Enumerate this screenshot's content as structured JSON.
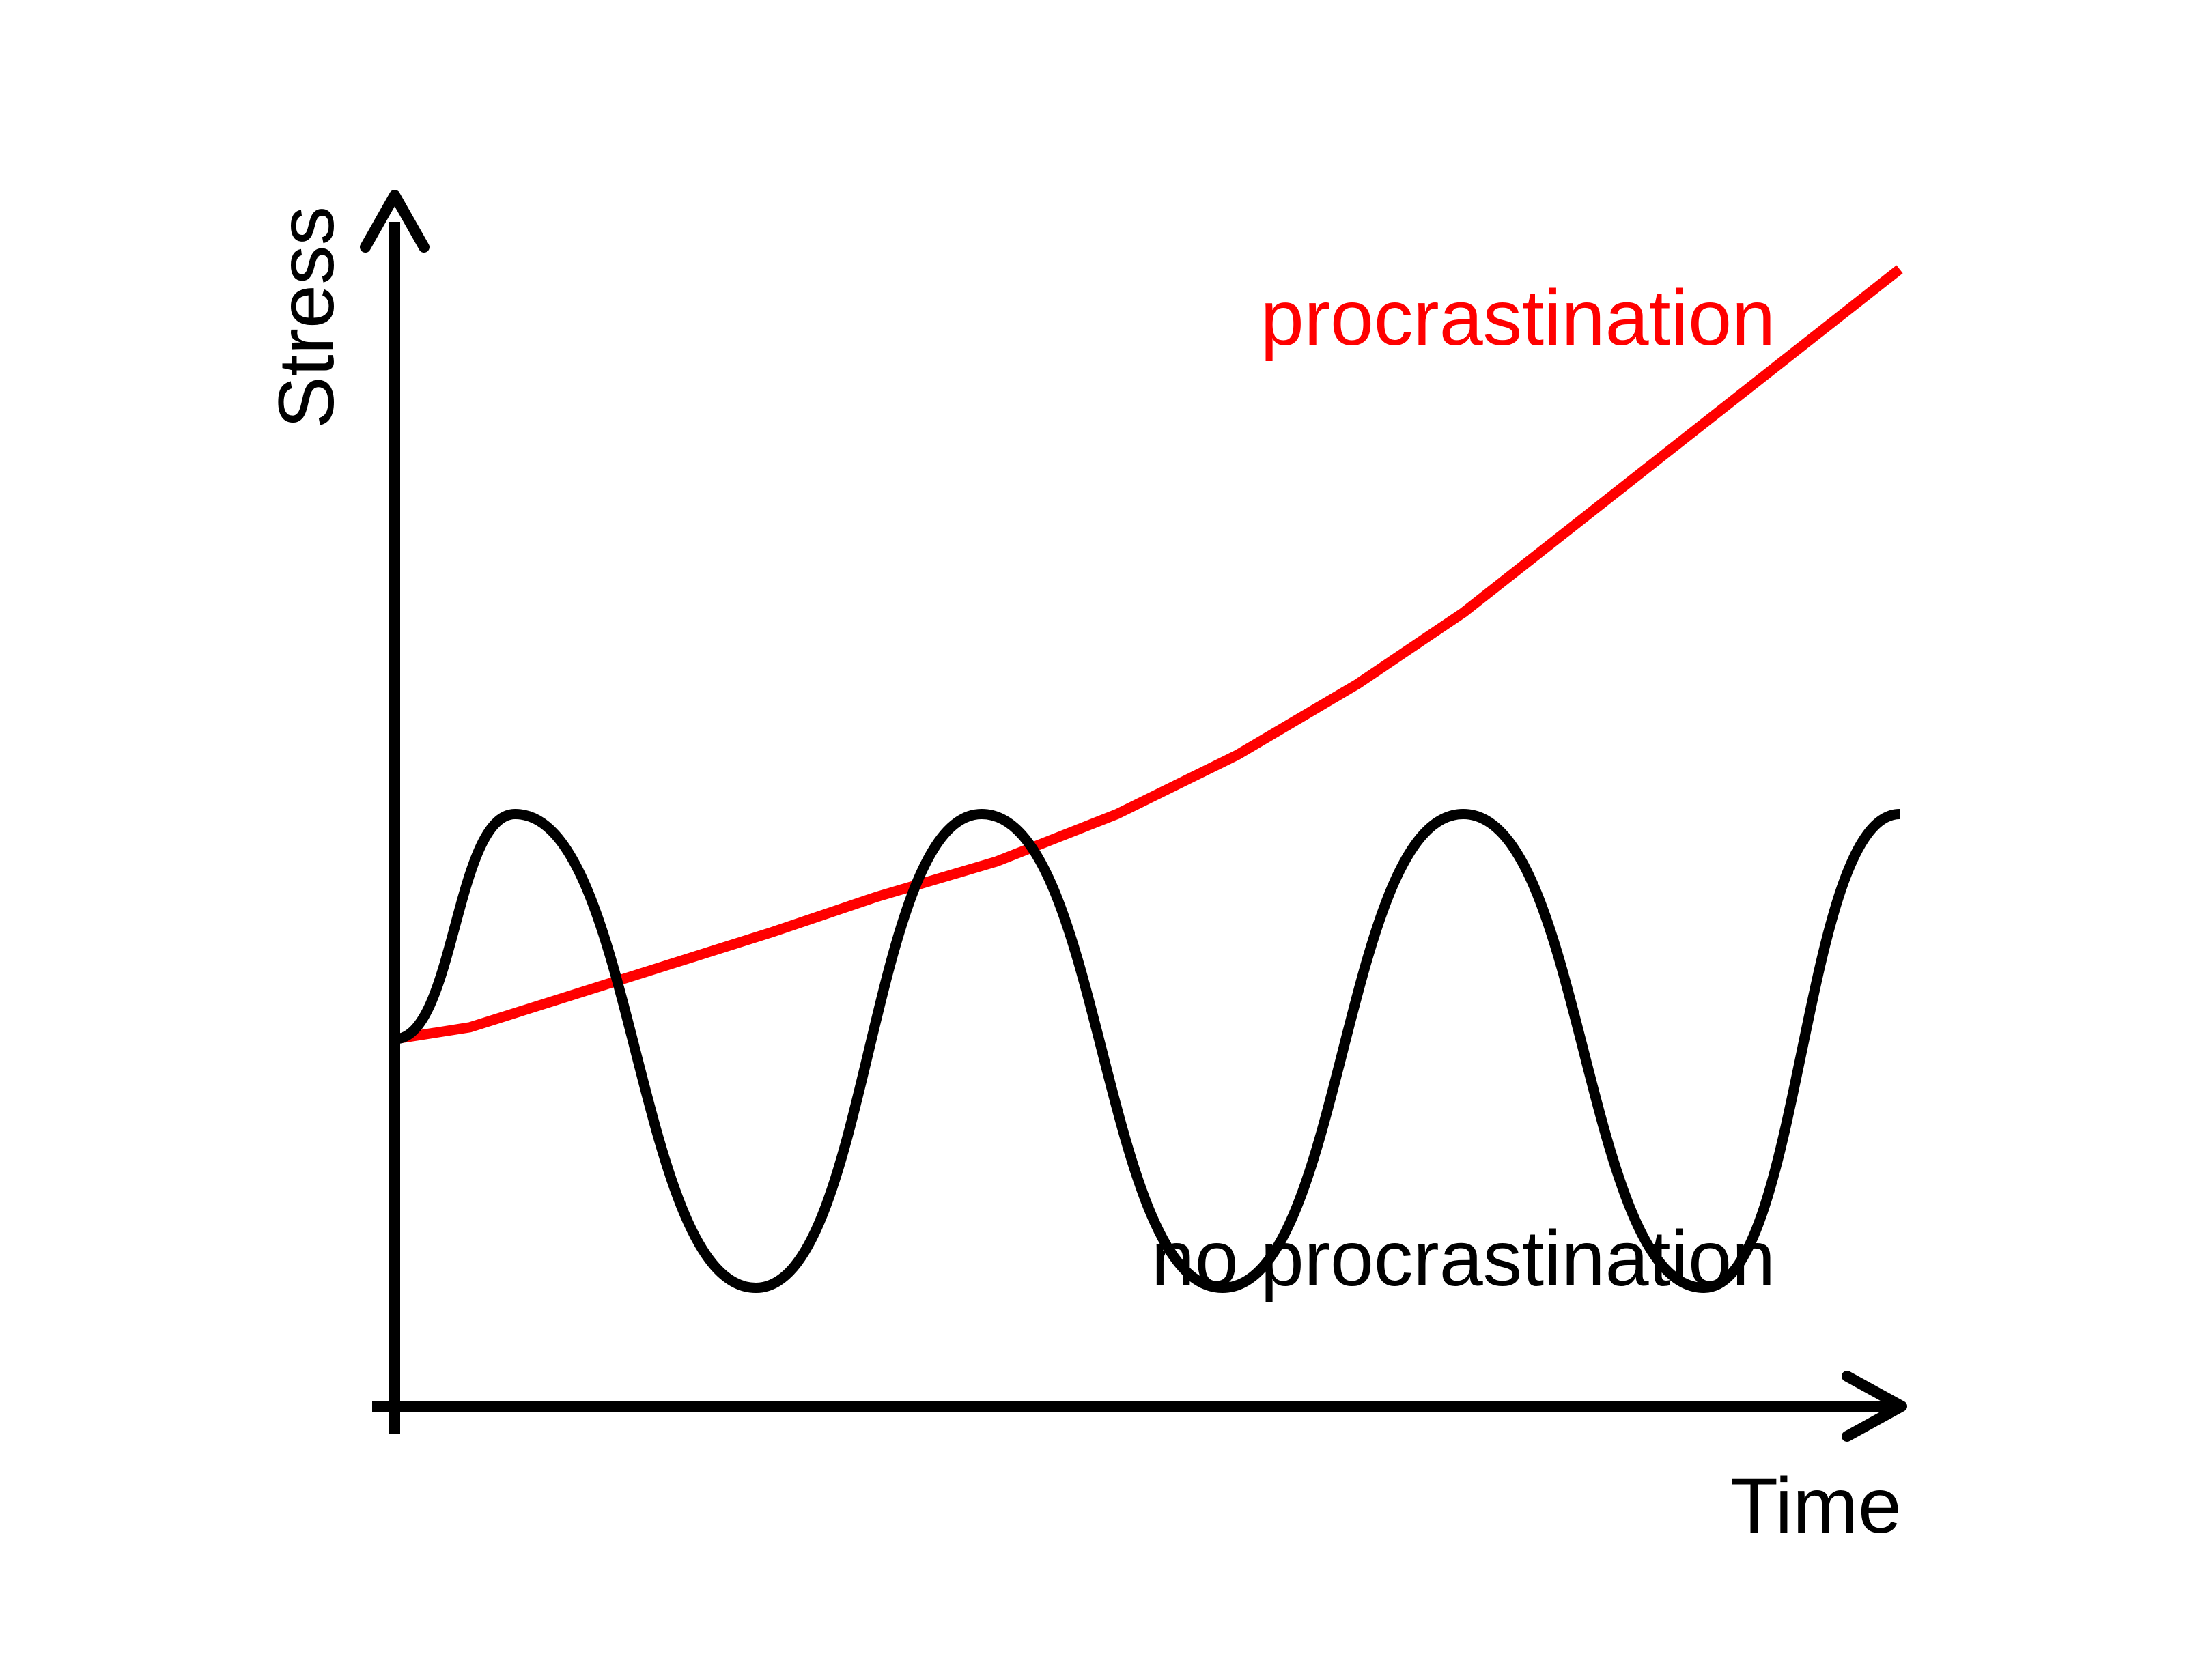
{
  "chart_data": {
    "type": "line",
    "xlabel": "Time",
    "ylabel": "Stress",
    "xlim": [
      0,
      1
    ],
    "ylim": [
      0,
      1
    ],
    "grid": false,
    "series": [
      {
        "name": "procrastination",
        "color": "#ff0000",
        "values_y": [
          0.31,
          0.32,
          0.34,
          0.36,
          0.38,
          0.4,
          0.43,
          0.46,
          0.5,
          0.55,
          0.61,
          0.67,
          0.74,
          0.81,
          0.88,
          0.96
        ],
        "values_x": [
          0.0,
          0.05,
          0.1,
          0.15,
          0.2,
          0.25,
          0.32,
          0.4,
          0.48,
          0.56,
          0.64,
          0.71,
          0.78,
          0.85,
          0.92,
          1.0
        ]
      },
      {
        "name": "no procrastination",
        "color": "#000000",
        "values_y": [
          0.31,
          0.5,
          0.5,
          0.1,
          0.1,
          0.5,
          0.5,
          0.1,
          0.1,
          0.5,
          0.5,
          0.1,
          0.1,
          0.5
        ],
        "values_x": [
          0.0,
          0.08,
          0.08,
          0.24,
          0.24,
          0.39,
          0.39,
          0.55,
          0.55,
          0.71,
          0.71,
          0.87,
          0.87,
          1.0
        ]
      }
    ],
    "annotations": [
      {
        "text": "procrastination",
        "color": "#ff0000"
      },
      {
        "text": "no procrastination",
        "color": "#000000"
      }
    ]
  }
}
